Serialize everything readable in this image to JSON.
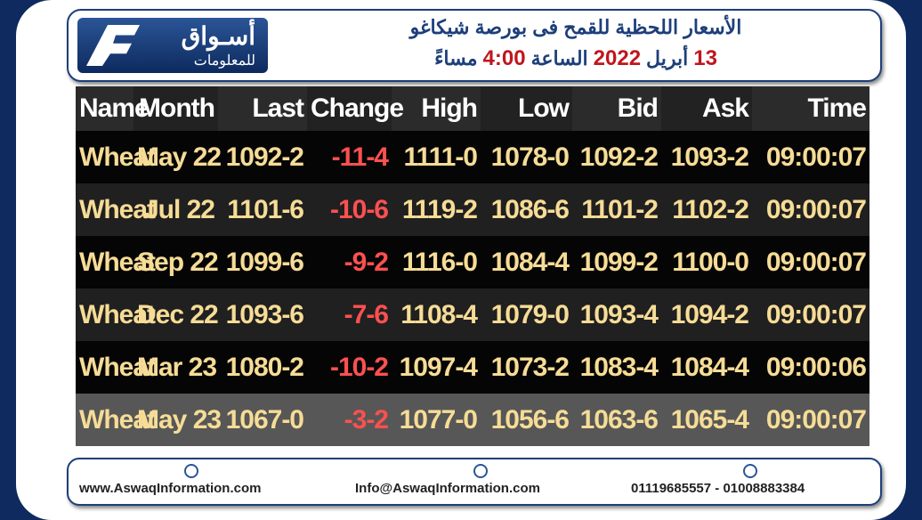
{
  "header": {
    "logo": {
      "name": "أسـواق",
      "tagline": "للمعلومات"
    },
    "title": "الأسعار اللحظية للقمح فى بورصة شيكاغو",
    "subtitle": [
      {
        "text": "13",
        "accent": true
      },
      {
        "text": "أبريل",
        "accent": false
      },
      {
        "text": "2022",
        "accent": true
      },
      {
        "text": "الساعة",
        "accent": false
      },
      {
        "text": "4:00",
        "accent": true
      },
      {
        "text": "مساءً",
        "accent": false
      }
    ]
  },
  "table": {
    "columns": [
      "Name",
      "Month",
      "Last",
      "Change",
      "High",
      "Low",
      "Bid",
      "Ask",
      "Time"
    ],
    "rows": [
      [
        "Wheat",
        "May 22",
        "1092-2",
        "-11-4",
        "1111-0",
        "1078-0",
        "1092-2",
        "1093-2",
        "09:00:07"
      ],
      [
        "Wheat",
        "Jul 22",
        "1101-6",
        "-10-6",
        "1119-2",
        "1086-6",
        "1101-2",
        "1102-2",
        "09:00:07"
      ],
      [
        "Wheat",
        "Sep 22",
        "1099-6",
        "-9-2",
        "1116-0",
        "1084-4",
        "1099-2",
        "1100-0",
        "09:00:07"
      ],
      [
        "Wheat",
        "Dec 22",
        "1093-6",
        "-7-6",
        "1108-4",
        "1079-0",
        "1093-4",
        "1094-2",
        "09:00:07"
      ],
      [
        "Wheat",
        "Mar 23",
        "1080-2",
        "-10-2",
        "1097-4",
        "1073-2",
        "1083-4",
        "1084-4",
        "09:00:06"
      ],
      [
        "Wheat",
        "May 23",
        "1067-0",
        "-3-2",
        "1077-0",
        "1056-6",
        "1063-6",
        "1065-4",
        "09:00:07"
      ]
    ]
  },
  "footer": {
    "website": "www.AswaqInformation.com",
    "email": "Info@AswaqInformation.com",
    "phones": "01119685557 - 01008883384"
  }
}
